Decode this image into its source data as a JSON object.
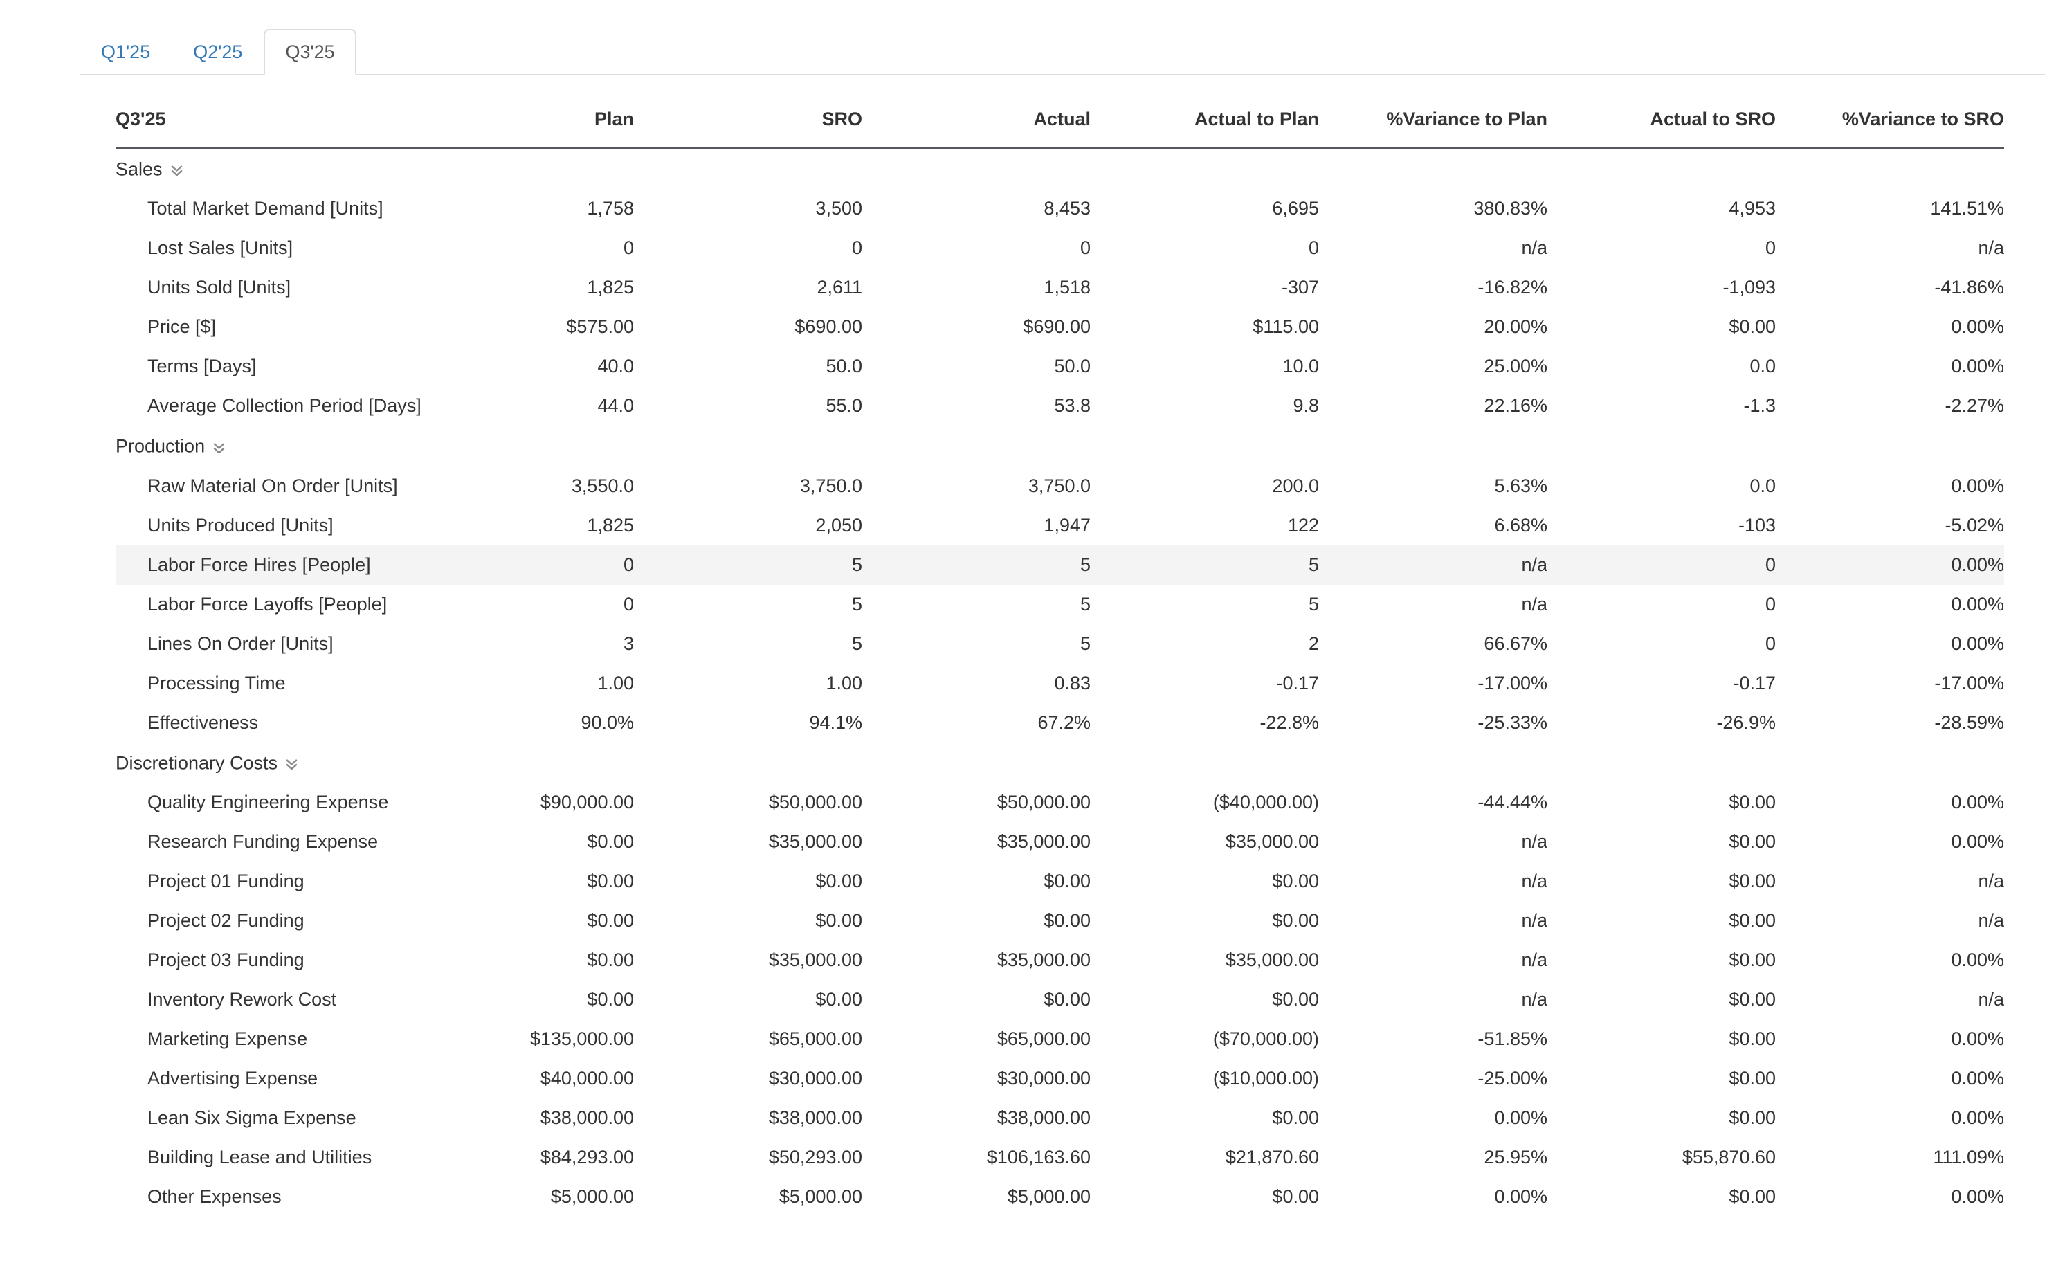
{
  "tabs": [
    {
      "label": "Q1'25",
      "active": false
    },
    {
      "label": "Q2'25",
      "active": false
    },
    {
      "label": "Q3'25",
      "active": true
    }
  ],
  "icons": {
    "section_collapse": "double-chevron-down"
  },
  "colors": {
    "link_blue": "#337ab7",
    "active_tab_text": "#555555",
    "tab_border": "#dddddd",
    "header_border": "#54585d",
    "highlight_row": "#f4f4f4",
    "body_text": "#333333"
  },
  "table": {
    "columns": [
      "Q3'25",
      "Plan",
      "SRO",
      "Actual",
      "Actual to Plan",
      "%Variance to Plan",
      "Actual to SRO",
      "%Variance to SRO"
    ],
    "sections": [
      {
        "name": "Sales",
        "rows": [
          {
            "label": "Total Market Demand [Units]",
            "values": [
              "1,758",
              "3,500",
              "8,453",
              "6,695",
              "380.83%",
              "4,953",
              "141.51%"
            ]
          },
          {
            "label": "Lost Sales [Units]",
            "values": [
              "0",
              "0",
              "0",
              "0",
              "n/a",
              "0",
              "n/a"
            ]
          },
          {
            "label": "Units Sold [Units]",
            "values": [
              "1,825",
              "2,611",
              "1,518",
              "-307",
              "-16.82%",
              "-1,093",
              "-41.86%"
            ]
          },
          {
            "label": "Price [$]",
            "values": [
              "$575.00",
              "$690.00",
              "$690.00",
              "$115.00",
              "20.00%",
              "$0.00",
              "0.00%"
            ]
          },
          {
            "label": "Terms [Days]",
            "values": [
              "40.0",
              "50.0",
              "50.0",
              "10.0",
              "25.00%",
              "0.0",
              "0.00%"
            ]
          },
          {
            "label": "Average Collection Period [Days]",
            "values": [
              "44.0",
              "55.0",
              "53.8",
              "9.8",
              "22.16%",
              "-1.3",
              "-2.27%"
            ]
          }
        ]
      },
      {
        "name": "Production",
        "rows": [
          {
            "label": "Raw Material On Order [Units]",
            "values": [
              "3,550.0",
              "3,750.0",
              "3,750.0",
              "200.0",
              "5.63%",
              "0.0",
              "0.00%"
            ]
          },
          {
            "label": "Units Produced [Units]",
            "values": [
              "1,825",
              "2,050",
              "1,947",
              "122",
              "6.68%",
              "-103",
              "-5.02%"
            ]
          },
          {
            "label": "Labor Force Hires [People]",
            "highlight": true,
            "values": [
              "0",
              "5",
              "5",
              "5",
              "n/a",
              "0",
              "0.00%"
            ]
          },
          {
            "label": "Labor Force Layoffs [People]",
            "values": [
              "0",
              "5",
              "5",
              "5",
              "n/a",
              "0",
              "0.00%"
            ]
          },
          {
            "label": "Lines On Order [Units]",
            "values": [
              "3",
              "5",
              "5",
              "2",
              "66.67%",
              "0",
              "0.00%"
            ]
          },
          {
            "label": "Processing Time",
            "values": [
              "1.00",
              "1.00",
              "0.83",
              "-0.17",
              "-17.00%",
              "-0.17",
              "-17.00%"
            ]
          },
          {
            "label": "Effectiveness",
            "values": [
              "90.0%",
              "94.1%",
              "67.2%",
              "-22.8%",
              "-25.33%",
              "-26.9%",
              "-28.59%"
            ]
          }
        ]
      },
      {
        "name": "Discretionary Costs",
        "rows": [
          {
            "label": "Quality Engineering Expense",
            "values": [
              "$90,000.00",
              "$50,000.00",
              "$50,000.00",
              "($40,000.00)",
              "-44.44%",
              "$0.00",
              "0.00%"
            ]
          },
          {
            "label": "Research Funding Expense",
            "values": [
              "$0.00",
              "$35,000.00",
              "$35,000.00",
              "$35,000.00",
              "n/a",
              "$0.00",
              "0.00%"
            ]
          },
          {
            "label": "Project 01 Funding",
            "values": [
              "$0.00",
              "$0.00",
              "$0.00",
              "$0.00",
              "n/a",
              "$0.00",
              "n/a"
            ]
          },
          {
            "label": "Project 02 Funding",
            "values": [
              "$0.00",
              "$0.00",
              "$0.00",
              "$0.00",
              "n/a",
              "$0.00",
              "n/a"
            ]
          },
          {
            "label": "Project 03 Funding",
            "values": [
              "$0.00",
              "$35,000.00",
              "$35,000.00",
              "$35,000.00",
              "n/a",
              "$0.00",
              "0.00%"
            ]
          },
          {
            "label": "Inventory Rework Cost",
            "values": [
              "$0.00",
              "$0.00",
              "$0.00",
              "$0.00",
              "n/a",
              "$0.00",
              "n/a"
            ]
          },
          {
            "label": "Marketing Expense",
            "values": [
              "$135,000.00",
              "$65,000.00",
              "$65,000.00",
              "($70,000.00)",
              "-51.85%",
              "$0.00",
              "0.00%"
            ]
          },
          {
            "label": "Advertising Expense",
            "values": [
              "$40,000.00",
              "$30,000.00",
              "$30,000.00",
              "($10,000.00)",
              "-25.00%",
              "$0.00",
              "0.00%"
            ]
          },
          {
            "label": "Lean Six Sigma Expense",
            "values": [
              "$38,000.00",
              "$38,000.00",
              "$38,000.00",
              "$0.00",
              "0.00%",
              "$0.00",
              "0.00%"
            ]
          },
          {
            "label": "Building Lease and Utilities",
            "values": [
              "$84,293.00",
              "$50,293.00",
              "$106,163.60",
              "$21,870.60",
              "25.95%",
              "$55,870.60",
              "111.09%"
            ]
          },
          {
            "label": "Other Expenses",
            "values": [
              "$5,000.00",
              "$5,000.00",
              "$5,000.00",
              "$0.00",
              "0.00%",
              "$0.00",
              "0.00%"
            ]
          }
        ]
      }
    ]
  }
}
